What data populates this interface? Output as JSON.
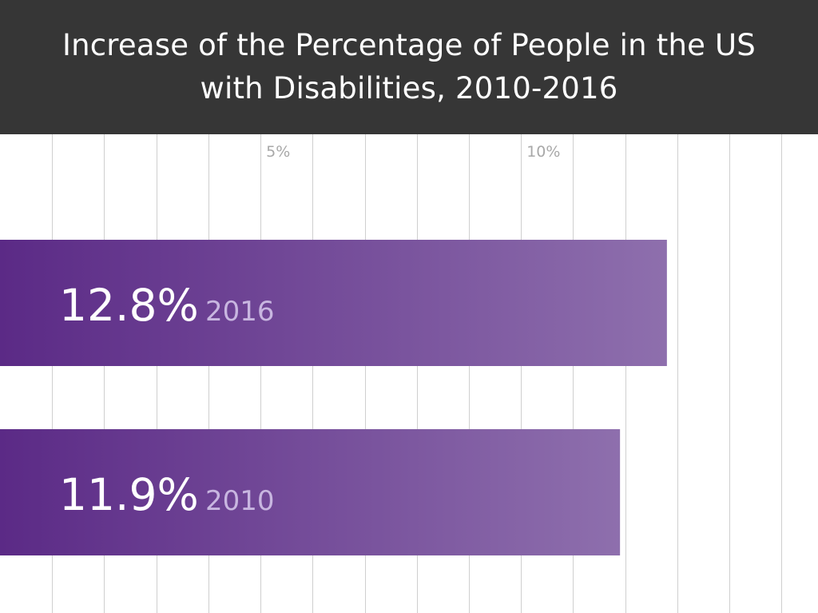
{
  "chart_data": {
    "type": "bar",
    "orientation": "horizontal",
    "title": "Increase of the Percentage of People in the US with Disabilities, 2010-2016",
    "title_lines": [
      "Increase of the Percentage of People in the US",
      "with Disabilities, 2010-2016"
    ],
    "categories": [
      "2016",
      "2010"
    ],
    "values": [
      12.8,
      11.9
    ],
    "value_labels": [
      "12.8%",
      "11.9%"
    ],
    "x_tick_labels": [
      {
        "value": 5,
        "label": "5%"
      },
      {
        "value": 10,
        "label": "10%"
      }
    ],
    "xlim": [
      0,
      15.7
    ],
    "gridline_step": 1,
    "grid": true,
    "legend": "none",
    "colors": {
      "header_bg": "#363636",
      "bar_start": "#5b2a86",
      "bar_end": "#8e6fad",
      "gridline": "#cfcfcf",
      "tick_label": "#a8a8a8",
      "year_label": "#c8b6e0"
    }
  }
}
